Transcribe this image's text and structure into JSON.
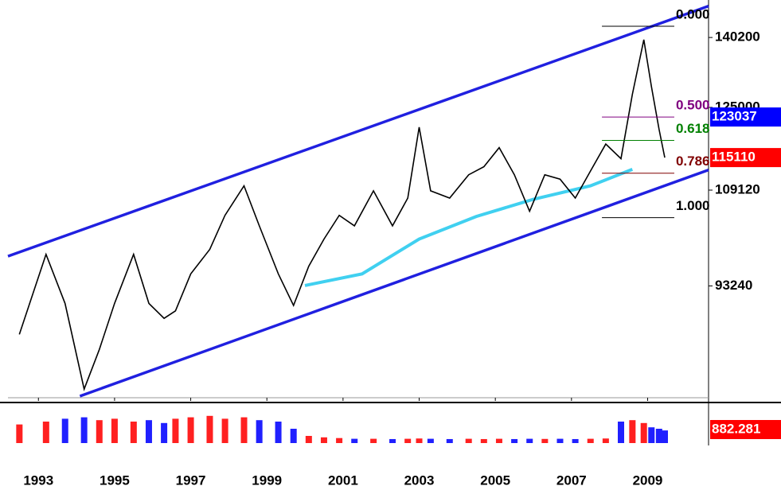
{
  "chart_data": {
    "type": "line",
    "log_scale": true,
    "x": [
      1992.5,
      1993.2,
      1993.7,
      1994.2,
      1994.6,
      1995.0,
      1995.5,
      1995.9,
      1996.3,
      1996.6,
      1997.0,
      1997.5,
      1997.9,
      1998.4,
      1998.8,
      1999.3,
      1999.7,
      2000.1,
      2000.5,
      2000.9,
      2001.3,
      2001.8,
      2002.3,
      2002.7,
      2003.0,
      2003.3,
      2003.8,
      2004.3,
      2004.7,
      2005.1,
      2005.5,
      2005.9,
      2006.3,
      2006.7,
      2007.1,
      2007.5,
      2007.9,
      2008.3,
      2008.6,
      2008.9,
      2009.1,
      2009.3,
      2009.45
    ],
    "values": [
      86100,
      98200,
      90600,
      78700,
      84000,
      90600,
      98200,
      90600,
      88400,
      89500,
      95100,
      99000,
      104700,
      109900,
      102900,
      95100,
      90300,
      96300,
      100700,
      104700,
      102900,
      109000,
      102900,
      107700,
      121000,
      109000,
      107700,
      111900,
      113400,
      117000,
      111900,
      105400,
      111900,
      111100,
      107700,
      112600,
      117700,
      114900,
      127700,
      139700,
      129300,
      120600,
      115110
    ],
    "color": "#000000",
    "volumes": [
      1300,
      1500,
      1700,
      1800,
      1600,
      1700,
      1500,
      1600,
      1400,
      1700,
      1800,
      1900,
      1700,
      1800,
      1600,
      1500,
      1000,
      500,
      400,
      350,
      300,
      300,
      280,
      300,
      320,
      300,
      280,
      300,
      280,
      300,
      280,
      300,
      290,
      300,
      280,
      300,
      320,
      1500,
      1600,
      1400,
      1100,
      1000,
      882.281
    ],
    "vlim": [
      0,
      2500
    ],
    "up_color": "#ff2020",
    "down_color": "#2020ff",
    "moving_average": {
      "color": "#40d0f0",
      "x": [
        2000.0,
        2001.5,
        2003.0,
        2004.5,
        2006.0,
        2007.5,
        2008.6
      ],
      "values": [
        93300,
        95100,
        100700,
        104500,
        107500,
        109900,
        112900
      ]
    },
    "trend_lines": [
      {
        "color": "#2020e0",
        "x": [
          1992.2,
          2010.6
        ],
        "values": [
          97900,
          147600
        ]
      },
      {
        "color": "#2020e0",
        "x": [
          1994.09,
          2010.6
        ],
        "values": [
          77800,
          112800
        ]
      }
    ],
    "fib_range": [
      2007.8,
      2009.7
    ],
    "fib_levels": [
      {
        "label": "0.000",
        "value": 142800,
        "color": "#000000"
      },
      {
        "label": "0.500",
        "value": 123037,
        "color": "#800080"
      },
      {
        "label": "0.618",
        "value": 118400,
        "color": "#008000"
      },
      {
        "label": "0.786",
        "value": 112200,
        "color": "#800000"
      },
      {
        "label": "1.000",
        "value": 104300,
        "color": "#000000"
      }
    ],
    "xlim": [
      1992.2,
      2010.6
    ],
    "xticks": [
      1993,
      1995,
      1997,
      1999,
      2001,
      2003,
      2005,
      2007,
      2009
    ],
    "ylim": [
      77600,
      149100
    ],
    "yticks": [
      140200,
      125000,
      109120,
      93240
    ]
  }
}
